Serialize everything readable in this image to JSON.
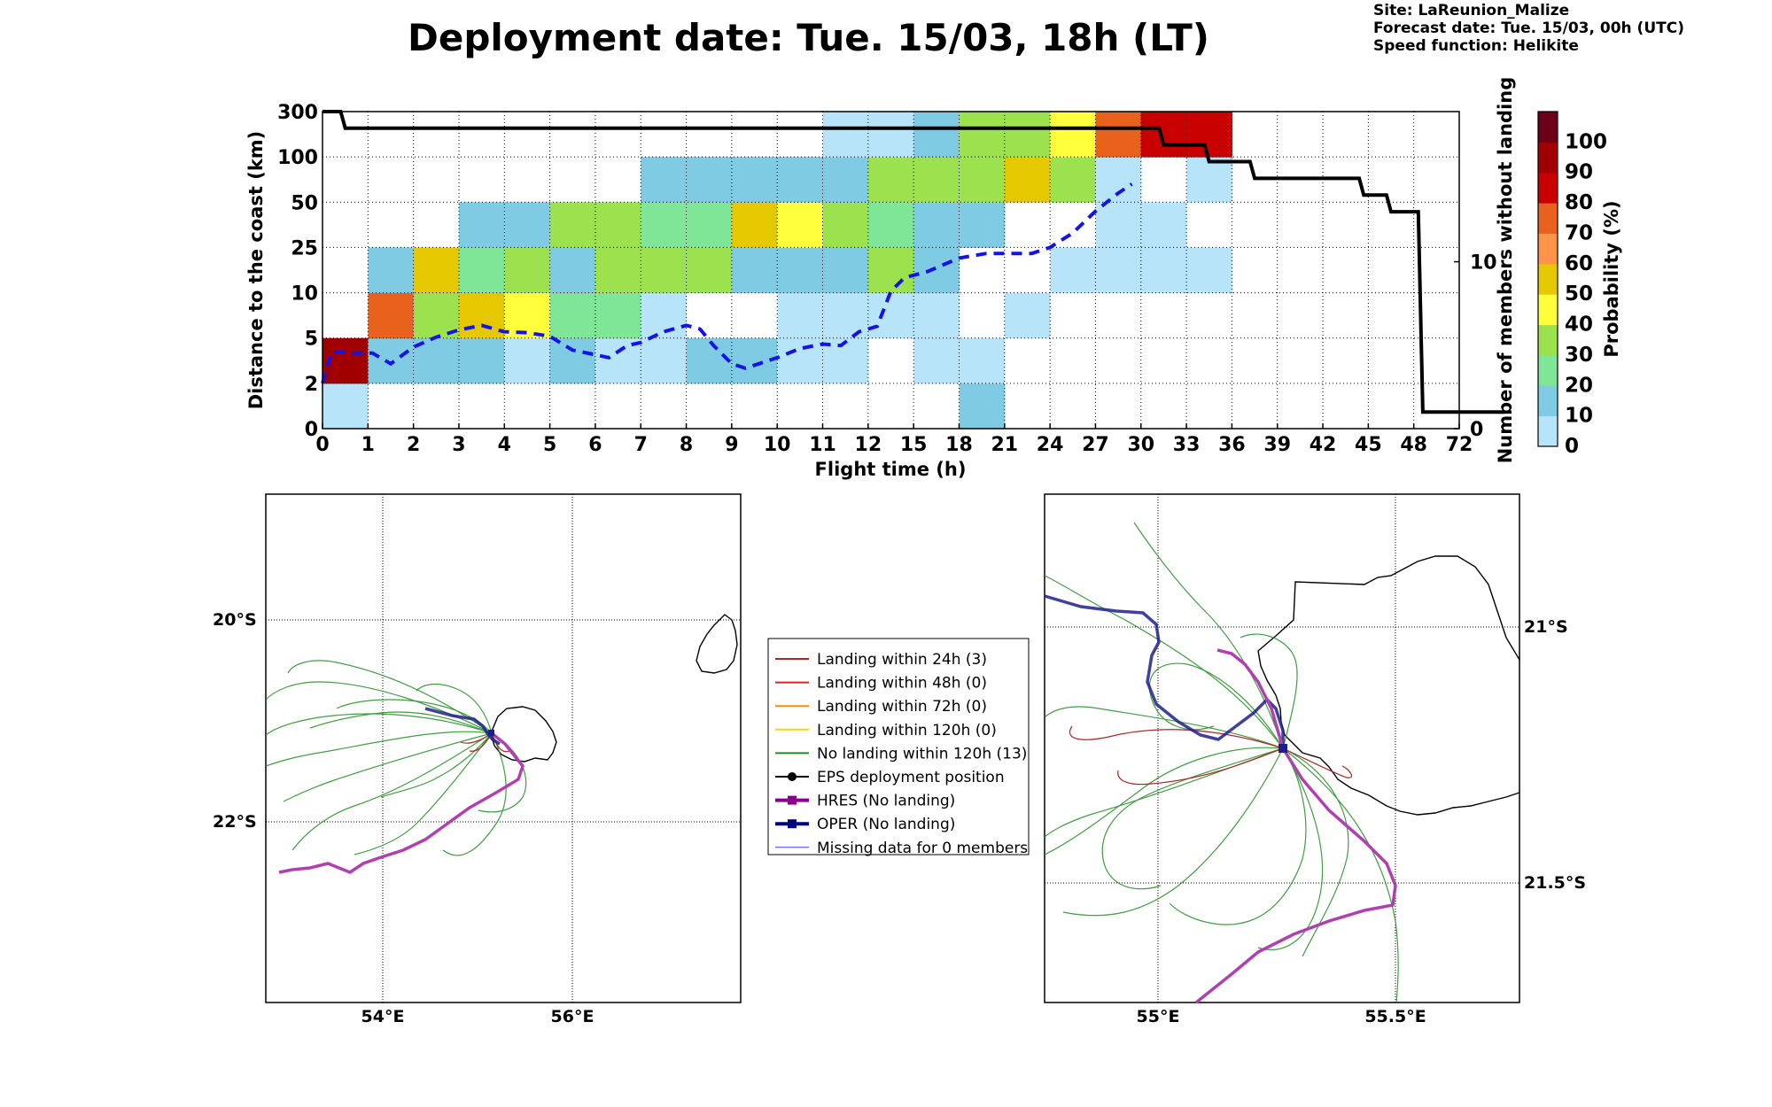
{
  "title": "Deployment date: Tue. 15/03, 18h (LT)",
  "info": [
    "Site: LaReunion_Malize",
    "Forecast date: Tue. 15/03, 00h (UTC)",
    "Speed function: Helikite"
  ],
  "chart_data": [
    {
      "type": "heatmap",
      "xlabel": "Flight time (h)",
      "ylabel": "Distance to the coast (km)",
      "y2label": "Number of members without landing",
      "colorbar_label": "Probability (%)",
      "x_ticks": [
        "0",
        "1",
        "2",
        "3",
        "4",
        "5",
        "6",
        "7",
        "8",
        "9",
        "10",
        "11",
        "12",
        "15",
        "18",
        "21",
        "24",
        "27",
        "30",
        "33",
        "36",
        "39",
        "42",
        "45",
        "48",
        "72"
      ],
      "y_ticks": [
        "0",
        "2",
        "5",
        "10",
        "25",
        "50",
        "100",
        "300"
      ],
      "y2_ticks": [
        {
          "label": "0",
          "value": 0
        },
        {
          "label": "10",
          "value": 10
        }
      ],
      "y2_range": [
        0,
        19
      ],
      "grid": true,
      "colorbar": {
        "ticks": [
          "0",
          "10",
          "20",
          "30",
          "40",
          "50",
          "60",
          "70",
          "80",
          "90",
          "100"
        ],
        "colors": [
          "#b8e4fa",
          "#7ecbe3",
          "#7ee696",
          "#9be24e",
          "#ffff3c",
          "#e5c800",
          "#ff934a",
          "#e8621e",
          "#c80000",
          "#a00000",
          "#6b0018"
        ]
      },
      "cells": [
        {
          "x": 0,
          "y": 0,
          "p": 5
        },
        {
          "x": 0,
          "y": 1,
          "p": 95
        },
        {
          "x": 1,
          "y": 1,
          "p": 15
        },
        {
          "x": 1,
          "y": 2,
          "p": 75
        },
        {
          "x": 1,
          "y": 3,
          "p": 15
        },
        {
          "x": 2,
          "y": 1,
          "p": 15
        },
        {
          "x": 2,
          "y": 2,
          "p": 35
        },
        {
          "x": 2,
          "y": 3,
          "p": 55
        },
        {
          "x": 3,
          "y": 1,
          "p": 15
        },
        {
          "x": 3,
          "y": 2,
          "p": 55
        },
        {
          "x": 3,
          "y": 3,
          "p": 25
        },
        {
          "x": 3,
          "y": 4,
          "p": 15
        },
        {
          "x": 4,
          "y": 1,
          "p": 5
        },
        {
          "x": 4,
          "y": 2,
          "p": 45
        },
        {
          "x": 4,
          "y": 3,
          "p": 35
        },
        {
          "x": 4,
          "y": 4,
          "p": 15
        },
        {
          "x": 5,
          "y": 1,
          "p": 15
        },
        {
          "x": 5,
          "y": 2,
          "p": 25
        },
        {
          "x": 5,
          "y": 3,
          "p": 15
        },
        {
          "x": 5,
          "y": 4,
          "p": 35
        },
        {
          "x": 6,
          "y": 1,
          "p": 5
        },
        {
          "x": 6,
          "y": 2,
          "p": 25
        },
        {
          "x": 6,
          "y": 3,
          "p": 35
        },
        {
          "x": 6,
          "y": 4,
          "p": 35
        },
        {
          "x": 7,
          "y": 1,
          "p": 5
        },
        {
          "x": 7,
          "y": 2,
          "p": 5
        },
        {
          "x": 7,
          "y": 3,
          "p": 35
        },
        {
          "x": 7,
          "y": 4,
          "p": 25
        },
        {
          "x": 7,
          "y": 5,
          "p": 15
        },
        {
          "x": 8,
          "y": 1,
          "p": 15
        },
        {
          "x": 8,
          "y": 3,
          "p": 35
        },
        {
          "x": 8,
          "y": 4,
          "p": 25
        },
        {
          "x": 8,
          "y": 5,
          "p": 15
        },
        {
          "x": 9,
          "y": 1,
          "p": 15
        },
        {
          "x": 9,
          "y": 3,
          "p": 15
        },
        {
          "x": 9,
          "y": 4,
          "p": 55
        },
        {
          "x": 9,
          "y": 5,
          "p": 15
        },
        {
          "x": 10,
          "y": 1,
          "p": 5
        },
        {
          "x": 10,
          "y": 2,
          "p": 5
        },
        {
          "x": 10,
          "y": 3,
          "p": 15
        },
        {
          "x": 10,
          "y": 4,
          "p": 45
        },
        {
          "x": 10,
          "y": 5,
          "p": 15
        },
        {
          "x": 11,
          "y": 1,
          "p": 5
        },
        {
          "x": 11,
          "y": 2,
          "p": 5
        },
        {
          "x": 11,
          "y": 3,
          "p": 15
        },
        {
          "x": 11,
          "y": 4,
          "p": 35
        },
        {
          "x": 11,
          "y": 5,
          "p": 15
        },
        {
          "x": 11,
          "y": 6,
          "p": 5
        },
        {
          "x": 12,
          "y": 2,
          "p": 5
        },
        {
          "x": 12,
          "y": 3,
          "p": 35
        },
        {
          "x": 12,
          "y": 4,
          "p": 25
        },
        {
          "x": 12,
          "y": 5,
          "p": 35
        },
        {
          "x": 12,
          "y": 6,
          "p": 5
        },
        {
          "x": 13,
          "y": 1,
          "p": 5
        },
        {
          "x": 13,
          "y": 2,
          "p": 5
        },
        {
          "x": 13,
          "y": 3,
          "p": 15
        },
        {
          "x": 13,
          "y": 4,
          "p": 15
        },
        {
          "x": 13,
          "y": 5,
          "p": 35
        },
        {
          "x": 13,
          "y": 6,
          "p": 15
        },
        {
          "x": 14,
          "y": 0,
          "p": 15
        },
        {
          "x": 14,
          "y": 1,
          "p": 5
        },
        {
          "x": 14,
          "y": 4,
          "p": 15
        },
        {
          "x": 14,
          "y": 5,
          "p": 35
        },
        {
          "x": 14,
          "y": 6,
          "p": 35
        },
        {
          "x": 15,
          "y": 2,
          "p": 5
        },
        {
          "x": 15,
          "y": 5,
          "p": 55
        },
        {
          "x": 15,
          "y": 6,
          "p": 35
        },
        {
          "x": 16,
          "y": 3,
          "p": 5
        },
        {
          "x": 16,
          "y": 5,
          "p": 35
        },
        {
          "x": 16,
          "y": 6,
          "p": 45
        },
        {
          "x": 17,
          "y": 3,
          "p": 5
        },
        {
          "x": 17,
          "y": 4,
          "p": 5
        },
        {
          "x": 17,
          "y": 5,
          "p": 5
        },
        {
          "x": 17,
          "y": 6,
          "p": 75
        },
        {
          "x": 18,
          "y": 3,
          "p": 5
        },
        {
          "x": 18,
          "y": 4,
          "p": 5
        },
        {
          "x": 18,
          "y": 6,
          "p": 85
        },
        {
          "x": 19,
          "y": 3,
          "p": 5
        },
        {
          "x": 19,
          "y": 5,
          "p": 5
        },
        {
          "x": 19,
          "y": 6,
          "p": 85
        }
      ],
      "series": [
        {
          "style": "solid-black",
          "axis": "right",
          "values": [
            [
              0,
              19
            ],
            [
              0.4,
              19
            ],
            [
              0.5,
              18
            ],
            [
              18.4,
              18
            ],
            [
              18.5,
              17
            ],
            [
              19.4,
              17
            ],
            [
              19.5,
              16
            ],
            [
              20.4,
              16
            ],
            [
              20.5,
              15
            ],
            [
              22.8,
              15
            ],
            [
              22.9,
              14
            ],
            [
              23.4,
              14
            ],
            [
              23.5,
              13
            ],
            [
              24.1,
              13
            ],
            [
              24.2,
              1
            ],
            [
              26,
              1
            ]
          ]
        },
        {
          "style": "dashed-blue",
          "axis": "left",
          "values": [
            [
              0,
              2
            ],
            [
              0.2,
              4.1
            ],
            [
              0.7,
              4.0
            ],
            [
              1.1,
              4.0
            ],
            [
              1.5,
              3.3
            ],
            [
              2.0,
              4.4
            ],
            [
              2.5,
              5.1
            ],
            [
              3.0,
              5.9
            ],
            [
              3.5,
              6.4
            ],
            [
              4.0,
              5.7
            ],
            [
              4.5,
              5.6
            ],
            [
              5.0,
              5.2
            ],
            [
              5.5,
              4.2
            ],
            [
              6.0,
              3.9
            ],
            [
              6.3,
              3.7
            ],
            [
              6.7,
              4.5
            ],
            [
              7.0,
              4.7
            ],
            [
              7.5,
              5.7
            ],
            [
              8.0,
              6.4
            ],
            [
              8.3,
              6.0
            ],
            [
              8.6,
              4.5
            ],
            [
              9.0,
              3.3
            ],
            [
              9.3,
              3.0
            ],
            [
              10.0,
              3.7
            ],
            [
              10.5,
              4.3
            ],
            [
              11.0,
              4.6
            ],
            [
              11.4,
              4.5
            ],
            [
              11.8,
              5.7
            ],
            [
              12.2,
              6.3
            ],
            [
              12.5,
              10.5
            ],
            [
              12.8,
              15
            ],
            [
              13.3,
              17
            ],
            [
              14.0,
              21.5
            ],
            [
              14.6,
              23
            ],
            [
              15.0,
              23
            ],
            [
              15.6,
              23
            ],
            [
              16.0,
              25
            ],
            [
              16.5,
              33
            ],
            [
              17.0,
              45
            ],
            [
              17.5,
              60
            ],
            [
              17.8,
              70
            ]
          ]
        }
      ]
    },
    {
      "type": "map",
      "x_ticks": [
        "54°E",
        "56°E"
      ],
      "y_ticks": [
        "20°S",
        "22°S"
      ],
      "lon_range": [
        52.75,
        57.75
      ],
      "lat_range": [
        -23.8,
        -18.8
      ]
    },
    {
      "type": "map",
      "x_ticks": [
        "55°E",
        "55.5°E"
      ],
      "y_ticks": [
        "21°S",
        "21.5°S"
      ],
      "lon_range": [
        54.76,
        55.76
      ],
      "lat_range": [
        -21.73,
        -20.73
      ]
    }
  ],
  "legend": [
    {
      "label": "Landing within 24h (3)",
      "color": "#a52a2a",
      "marker": "none",
      "width": 2
    },
    {
      "label": "Landing within 48h (0)",
      "color": "#e8201a",
      "marker": "none",
      "width": 2
    },
    {
      "label": "Landing within 72h (0)",
      "color": "#ff8c00",
      "marker": "none",
      "width": 2
    },
    {
      "label": "Landing within 120h (0)",
      "color": "#f5d800",
      "marker": "none",
      "width": 2
    },
    {
      "label": "No landing within 120h (13)",
      "color": "#228b22",
      "marker": "none",
      "width": 2
    },
    {
      "label": "EPS deployment position",
      "color": "#000000",
      "marker": "circle",
      "width": 2
    },
    {
      "label": "HRES (No landing)",
      "color": "#8b008b",
      "marker": "square",
      "width": 4
    },
    {
      "label": "OPER (No landing)",
      "color": "#000080",
      "marker": "square",
      "width": 4
    },
    {
      "label": "Missing data for 0 members",
      "color": "#4040ff",
      "marker": "none",
      "width": 1
    }
  ]
}
